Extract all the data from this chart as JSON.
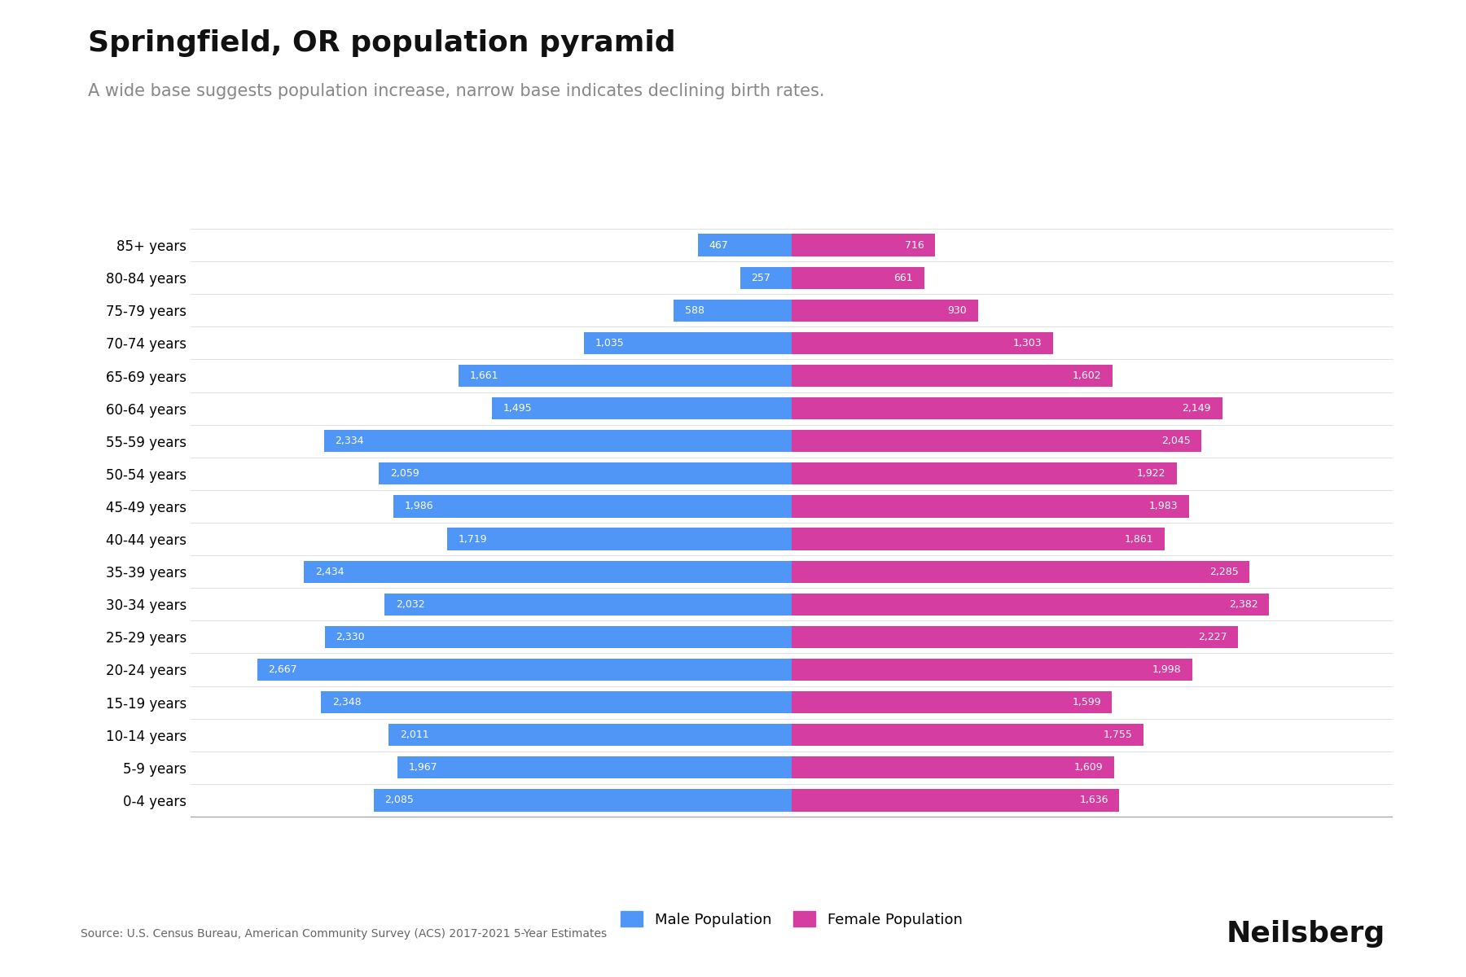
{
  "title": "Springfield, OR population pyramid",
  "subtitle": "A wide base suggests population increase, narrow base indicates declining birth rates.",
  "age_groups": [
    "0-4 years",
    "5-9 years",
    "10-14 years",
    "15-19 years",
    "20-24 years",
    "25-29 years",
    "30-34 years",
    "35-39 years",
    "40-44 years",
    "45-49 years",
    "50-54 years",
    "55-59 years",
    "60-64 years",
    "65-69 years",
    "70-74 years",
    "75-79 years",
    "80-84 years",
    "85+ years"
  ],
  "male": [
    2085,
    1967,
    2011,
    2348,
    2667,
    2330,
    2032,
    2434,
    1719,
    1986,
    2059,
    2334,
    1495,
    1661,
    1035,
    588,
    257,
    467
  ],
  "female": [
    1636,
    1609,
    1755,
    1599,
    1998,
    2227,
    2382,
    2285,
    1861,
    1983,
    1922,
    2045,
    2149,
    1602,
    1303,
    930,
    661,
    716
  ],
  "male_color": "#4f96f6",
  "female_color": "#d63da0",
  "background_color": "#ffffff",
  "title_fontsize": 26,
  "subtitle_fontsize": 15,
  "subtitle_color": "#888888",
  "bar_label_fontsize": 9,
  "bar_label_color": "#ffffff",
  "source_text": "Source: U.S. Census Bureau, American Community Survey (ACS) 2017-2021 5-Year Estimates",
  "brand_text": "Neilsberg",
  "xlim": 3000
}
